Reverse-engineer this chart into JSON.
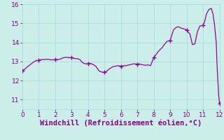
{
  "xlabel": "Windchill (Refroidissement éolien,°C)",
  "background_color": "#cceee8",
  "line_color": "#990099",
  "marker_color": "#990099",
  "xlim": [
    0,
    12
  ],
  "ylim": [
    10.5,
    16.0
  ],
  "xticks": [
    0,
    1,
    2,
    3,
    4,
    5,
    6,
    7,
    8,
    9,
    10,
    11,
    12
  ],
  "yticks": [
    11,
    12,
    13,
    14,
    15,
    16
  ],
  "x": [
    0.0,
    0.15,
    0.3,
    0.5,
    0.7,
    0.85,
    1.0,
    1.15,
    1.35,
    1.5,
    1.65,
    1.8,
    2.0,
    2.15,
    2.3,
    2.5,
    2.7,
    2.85,
    3.0,
    3.1,
    3.2,
    3.35,
    3.5,
    3.65,
    3.8,
    4.0,
    4.1,
    4.2,
    4.35,
    4.5,
    4.65,
    4.8,
    5.0,
    5.15,
    5.3,
    5.5,
    5.65,
    5.8,
    6.0,
    6.15,
    6.3,
    6.5,
    6.65,
    6.8,
    7.0,
    7.1,
    7.2,
    7.35,
    7.5,
    7.65,
    7.8,
    8.0,
    8.15,
    8.3,
    8.5,
    8.65,
    8.8,
    9.0,
    9.1,
    9.2,
    9.35,
    9.5,
    9.65,
    9.8,
    10.0,
    10.1,
    10.2,
    10.35,
    10.5,
    10.65,
    10.8,
    11.0,
    11.1,
    11.2,
    11.35,
    11.5,
    11.6,
    11.7,
    11.8,
    11.85,
    11.9,
    11.95,
    12.0
  ],
  "y": [
    12.5,
    12.6,
    12.72,
    12.85,
    12.98,
    13.05,
    13.05,
    13.1,
    13.1,
    13.12,
    13.1,
    13.08,
    13.1,
    13.1,
    13.12,
    13.2,
    13.22,
    13.2,
    13.2,
    13.18,
    13.15,
    13.15,
    13.1,
    12.95,
    12.88,
    12.88,
    12.9,
    12.88,
    12.82,
    12.72,
    12.52,
    12.45,
    12.43,
    12.5,
    12.62,
    12.72,
    12.75,
    12.78,
    12.75,
    12.78,
    12.78,
    12.82,
    12.85,
    12.88,
    12.85,
    12.88,
    12.85,
    12.82,
    12.8,
    12.82,
    12.78,
    13.2,
    13.38,
    13.55,
    13.72,
    13.9,
    14.05,
    14.1,
    14.4,
    14.65,
    14.78,
    14.82,
    14.75,
    14.72,
    14.65,
    14.52,
    14.45,
    13.88,
    13.92,
    14.55,
    14.85,
    14.9,
    15.1,
    15.48,
    15.72,
    15.78,
    15.5,
    14.9,
    14.0,
    12.8,
    12.0,
    11.2,
    10.8
  ],
  "marker_x": [
    0.0,
    1.0,
    2.0,
    3.0,
    4.0,
    5.0,
    6.0,
    7.0,
    8.0,
    9.0,
    10.0,
    11.0,
    12.0
  ],
  "marker_y": [
    12.5,
    13.05,
    13.1,
    13.2,
    12.88,
    12.43,
    12.75,
    12.85,
    13.2,
    14.1,
    14.65,
    14.9,
    10.8
  ],
  "grid_color": "#aadddd",
  "tick_color": "#880088",
  "tick_fontsize": 6.5,
  "xlabel_fontsize": 7.5
}
